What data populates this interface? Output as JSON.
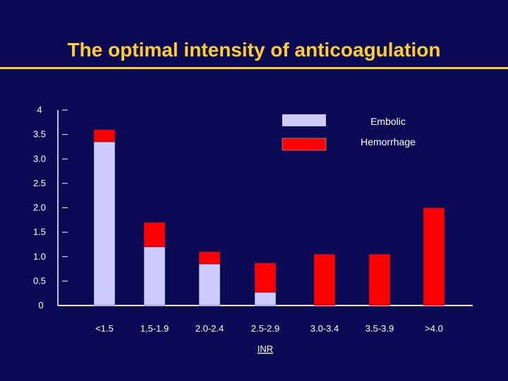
{
  "slide": {
    "title": "The optimal intensity of anticoagulation"
  },
  "colors": {
    "background": "#0b0b55",
    "title": "#ffcc33",
    "embolic": "#ccccff",
    "hemorrhage": "#ff0000",
    "axis": "#ffffff"
  },
  "chart_data": {
    "type": "bar",
    "stacked": true,
    "xlabel": "INR",
    "ylabel": "",
    "ylim": [
      0,
      4
    ],
    "y_ticks": [
      "0",
      "0.5",
      "1.0",
      "1.5",
      "2.0",
      "2.5",
      "3.0",
      "3.5",
      "4"
    ],
    "y_tick_values": [
      0,
      0.5,
      1.0,
      1.5,
      2.0,
      2.5,
      3.0,
      3.5,
      4
    ],
    "categories": [
      "<1.5",
      "1,5-1.9",
      "2.0-2.4",
      "2.5-2.9",
      "3.0-3.4",
      "3.5-3.9",
      ">4.0"
    ],
    "series": [
      {
        "name": "Embolic",
        "values": [
          3.35,
          1.2,
          0.85,
          0.27,
          0,
          0,
          0
        ]
      },
      {
        "name": "Hemorrhage",
        "values": [
          0.25,
          0.5,
          0.25,
          0.6,
          1.05,
          1.05,
          2.0
        ]
      }
    ],
    "legend_position": "top-right",
    "grid": false
  }
}
